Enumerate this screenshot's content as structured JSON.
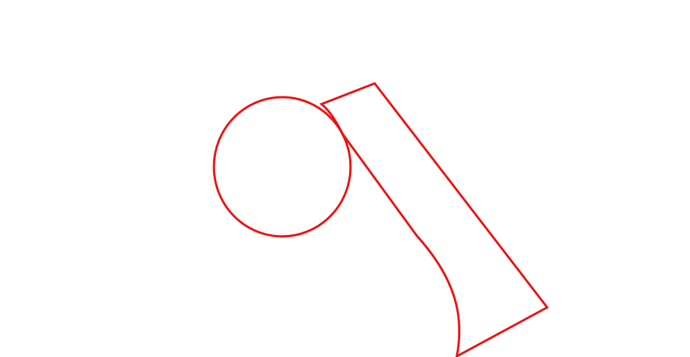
{
  "drawing": {
    "stroke_color": "#ee1111",
    "background_color": "#ffffff",
    "shapes": [
      "circle",
      "quadrilateral-with-curved-side"
    ]
  }
}
